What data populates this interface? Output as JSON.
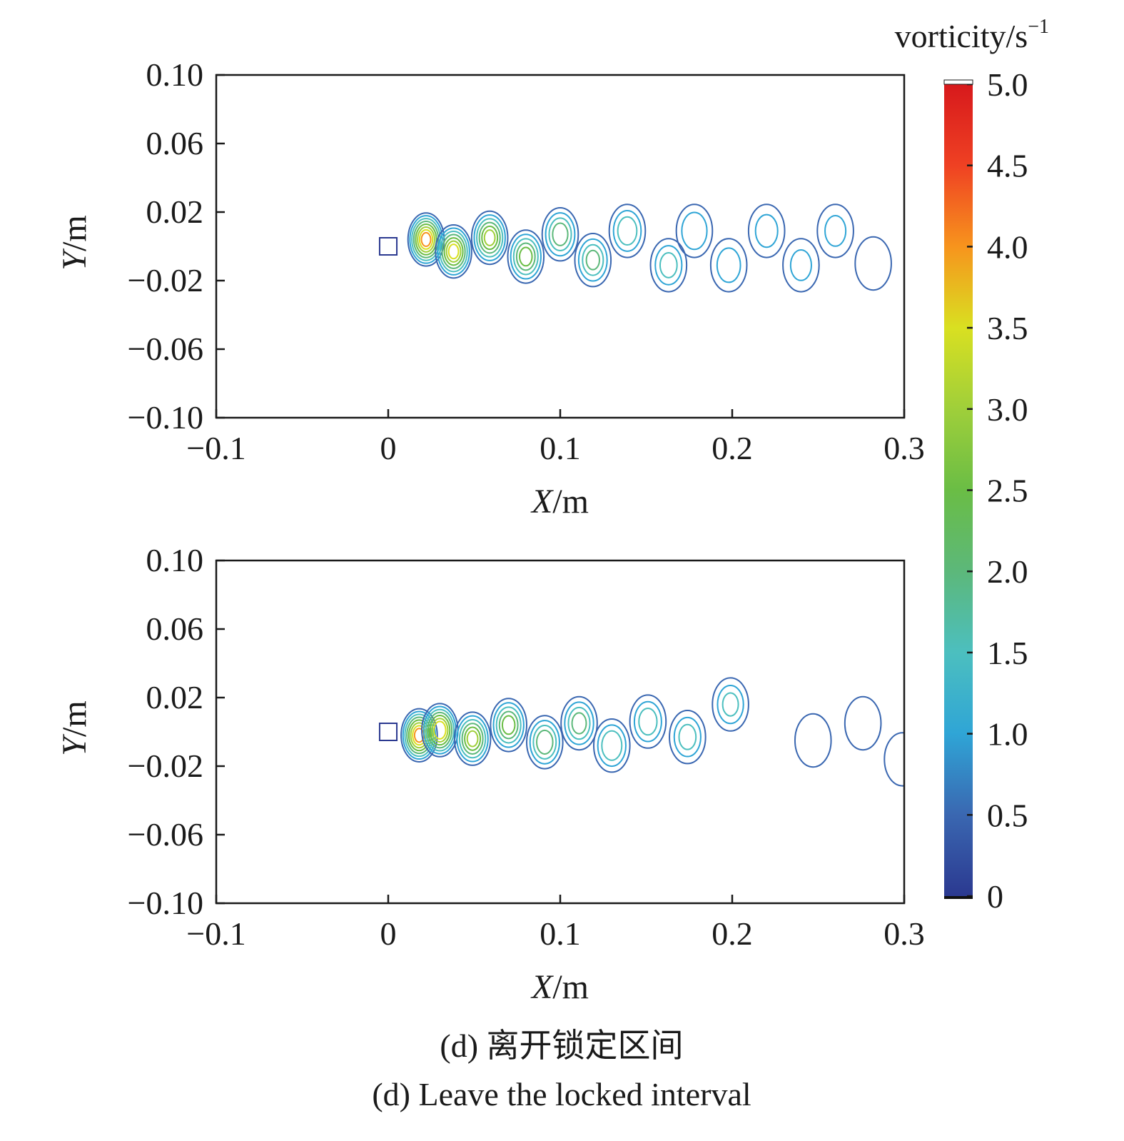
{
  "chart_data": [
    {
      "type": "contour",
      "xlabel_var": "X",
      "xlabel_unit": "/m",
      "ylabel_var": "Y",
      "ylabel_unit": "/m",
      "xlim": [
        -0.1,
        0.3
      ],
      "ylim": [
        -0.1,
        0.1
      ],
      "xticks": [
        "−0.1",
        "0",
        "0.1",
        "0.2",
        "0.3"
      ],
      "yticks": [
        "0.10",
        "0.06",
        "0.02",
        "−0.02",
        "−0.06",
        "−0.10"
      ],
      "vortices": [
        {
          "x": 0.022,
          "y": 0.004,
          "peak": 4.0
        },
        {
          "x": 0.038,
          "y": -0.003,
          "peak": 3.5
        },
        {
          "x": 0.059,
          "y": 0.005,
          "peak": 3.0
        },
        {
          "x": 0.08,
          "y": -0.006,
          "peak": 2.6
        },
        {
          "x": 0.1,
          "y": 0.007,
          "peak": 2.2
        },
        {
          "x": 0.119,
          "y": -0.008,
          "peak": 2.0
        },
        {
          "x": 0.139,
          "y": 0.009,
          "peak": 1.8
        },
        {
          "x": 0.163,
          "y": -0.011,
          "peak": 1.6
        },
        {
          "x": 0.178,
          "y": 0.009,
          "peak": 1.4
        },
        {
          "x": 0.198,
          "y": -0.011,
          "peak": 1.2
        },
        {
          "x": 0.22,
          "y": 0.009,
          "peak": 1.1
        },
        {
          "x": 0.24,
          "y": -0.011,
          "peak": 1.0
        },
        {
          "x": 0.26,
          "y": 0.009,
          "peak": 1.0
        },
        {
          "x": 0.282,
          "y": -0.01,
          "peak": 0.9
        }
      ]
    },
    {
      "type": "contour",
      "xlabel_var": "X",
      "xlabel_unit": "/m",
      "ylabel_var": "Y",
      "ylabel_unit": "/m",
      "xlim": [
        -0.1,
        0.3
      ],
      "ylim": [
        -0.1,
        0.1
      ],
      "xticks": [
        "−0.1",
        "0",
        "0.1",
        "0.2",
        "0.3"
      ],
      "yticks": [
        "0.10",
        "0.06",
        "0.02",
        "−0.02",
        "−0.06",
        "−0.10"
      ],
      "vortices": [
        {
          "x": 0.018,
          "y": -0.002,
          "peak": 4.0
        },
        {
          "x": 0.03,
          "y": 0.001,
          "peak": 3.8
        },
        {
          "x": 0.049,
          "y": -0.004,
          "peak": 3.0
        },
        {
          "x": 0.07,
          "y": 0.004,
          "peak": 2.6
        },
        {
          "x": 0.091,
          "y": -0.006,
          "peak": 2.3
        },
        {
          "x": 0.111,
          "y": 0.005,
          "peak": 2.1
        },
        {
          "x": 0.13,
          "y": -0.008,
          "peak": 1.9
        },
        {
          "x": 0.151,
          "y": 0.006,
          "peak": 1.7
        },
        {
          "x": 0.174,
          "y": -0.003,
          "peak": 1.6
        },
        {
          "x": 0.199,
          "y": 0.016,
          "peak": 1.5
        },
        {
          "x": 0.247,
          "y": -0.005,
          "peak": 0.6
        },
        {
          "x": 0.276,
          "y": 0.005,
          "peak": 0.5
        },
        {
          "x": 0.299,
          "y": -0.016,
          "peak": 0.5
        }
      ]
    }
  ],
  "colorbar": {
    "title": "vorticity/s",
    "title_superscript": "−1",
    "min": 0,
    "max": 5.0,
    "ticks": [
      "5.0",
      "4.5",
      "4.0",
      "3.5",
      "3.0",
      "2.5",
      "2.0",
      "1.5",
      "1.0",
      "0.5",
      "0"
    ],
    "colors": [
      "#2b3990",
      "#3a67b1",
      "#2fa5d6",
      "#4cbfbf",
      "#5cb87a",
      "#6abd45",
      "#9fcf3a",
      "#d9e021",
      "#f7941d",
      "#ef4123",
      "#d7191c"
    ]
  },
  "caption": {
    "line1": "(d) 离开锁定区间",
    "line2": "(d) Leave the locked interval"
  }
}
